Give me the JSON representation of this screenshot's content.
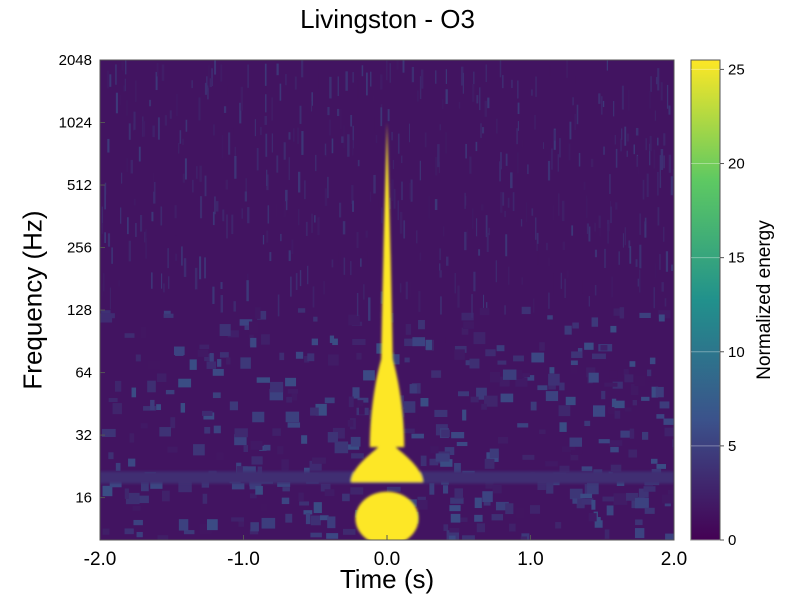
{
  "chart_data": {
    "type": "heatmap",
    "title": "Livingston - O3",
    "xlabel": "Time (s)",
    "ylabel": "Frequency (Hz)",
    "colorbar_label": "Normalized energy",
    "xlim": [
      -2.0,
      2.0
    ],
    "x_ticks": [
      -2.0,
      -1.0,
      0.0,
      1.0,
      2.0
    ],
    "x_tick_labels": [
      "-2.0",
      "-1.0",
      "0.0",
      "1.0",
      "2.0"
    ],
    "y_scale": "log2",
    "ylim": [
      10,
      2048
    ],
    "y_ticks": [
      16,
      32,
      64,
      128,
      256,
      512,
      1024,
      2048
    ],
    "y_tick_labels": [
      "16",
      "32",
      "64",
      "128",
      "256",
      "512",
      "1024",
      "2048"
    ],
    "colorbar_range": [
      0,
      25.5
    ],
    "colorbar_ticks": [
      0,
      5,
      10,
      15,
      20,
      25
    ],
    "colorbar_tick_labels": [
      "0",
      "5",
      "10",
      "15",
      "20",
      "25"
    ],
    "colormap": "viridis",
    "colormap_stops": [
      "#440154",
      "#3b528b",
      "#21918c",
      "#5ec962",
      "#fde725"
    ],
    "background_value": 1.5,
    "features": [
      {
        "name": "chirp-upper-track",
        "t": 0.0,
        "f_min": 64,
        "f_max": 1024,
        "value": 25.5
      },
      {
        "name": "chirp-core",
        "t_range": [
          -0.12,
          0.12
        ],
        "f_range": [
          28,
          80
        ],
        "value": 25.5
      },
      {
        "name": "chirp-base-wide",
        "t_range": [
          -0.25,
          0.25
        ],
        "f_range": [
          19,
          28
        ],
        "value": 25.5
      },
      {
        "name": "low-frequency-blob",
        "t_range": [
          -0.22,
          0.22
        ],
        "f_range": [
          11,
          16
        ],
        "value": 25.5
      },
      {
        "name": "horizontal-band",
        "t_range": [
          -2.0,
          2.0
        ],
        "f": 20,
        "value": 3.5
      }
    ]
  }
}
